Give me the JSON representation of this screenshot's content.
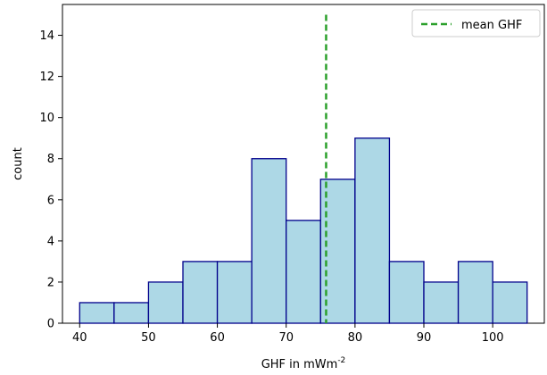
{
  "chart_data": {
    "type": "bar",
    "subtype": "histogram",
    "bin_edges": [
      40,
      45,
      50,
      55,
      60,
      65,
      70,
      75,
      80,
      85,
      90,
      95,
      100,
      105
    ],
    "counts": [
      1,
      1,
      2,
      3,
      3,
      8,
      5,
      7,
      9,
      3,
      2,
      3,
      2
    ],
    "bar_fill": "#add8e6",
    "bar_edge": "#00008b",
    "mean_line": {
      "x": 75.8,
      "label": "mean GHF",
      "color": "#2ca02c",
      "style": "dashed"
    },
    "xlabel": "GHF in mWm",
    "xlabel_sup": "-2",
    "ylabel": "count",
    "xlim": [
      37.5,
      107.5
    ],
    "ylim": [
      0,
      15.5
    ],
    "xticks": [
      40,
      50,
      60,
      70,
      80,
      90,
      100
    ],
    "yticks": [
      0,
      2,
      4,
      6,
      8,
      10,
      12,
      14
    ],
    "grid": false,
    "legend_position": "top-right"
  }
}
